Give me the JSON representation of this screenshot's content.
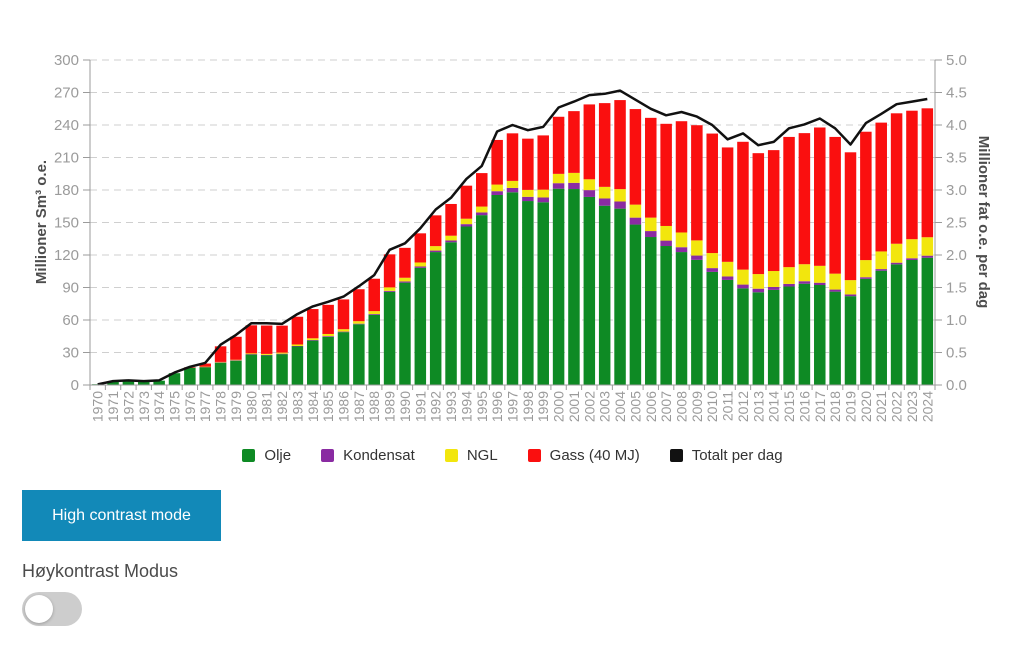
{
  "chart_data": {
    "type": "bar",
    "stacked": true,
    "categories": [
      "1970",
      "1971",
      "1972",
      "1973",
      "1974",
      "1975",
      "1976",
      "1977",
      "1978",
      "1979",
      "1980",
      "1981",
      "1982",
      "1983",
      "1984",
      "1985",
      "1986",
      "1987",
      "1988",
      "1989",
      "1990",
      "1991",
      "1992",
      "1993",
      "1994",
      "1995",
      "1996",
      "1997",
      "1998",
      "1999",
      "2000",
      "2001",
      "2002",
      "2003",
      "2004",
      "2005",
      "2006",
      "2007",
      "2008",
      "2009",
      "2010",
      "2011",
      "2012",
      "2013",
      "2014",
      "2015",
      "2016",
      "2017",
      "2018",
      "2019",
      "2020",
      "2021",
      "2022",
      "2023",
      "2024"
    ],
    "series": [
      {
        "name": "Olje",
        "color": "#0e8a24",
        "values": [
          0.7,
          3.5,
          3.8,
          3.7,
          4.0,
          10.9,
          16.2,
          16.6,
          20.6,
          22.5,
          28.2,
          27.5,
          28.5,
          35.6,
          41.0,
          44.4,
          48.8,
          56.1,
          64.8,
          86.0,
          94.5,
          108.2,
          122.7,
          131.8,
          146.3,
          156.8,
          175.4,
          177.9,
          169.8,
          168.7,
          181.2,
          180.9,
          173.6,
          165.5,
          162.8,
          148.1,
          136.6,
          128.3,
          122.7,
          115.5,
          104.4,
          97.0,
          89.2,
          85.6,
          87.8,
          90.9,
          93.5,
          92.3,
          86.2,
          82.0,
          98.0,
          105.5,
          111.4,
          115.4,
          117.5
        ]
      },
      {
        "name": "Kondensat",
        "color": "#8a2ba2",
        "values": [
          0,
          0,
          0,
          0,
          0,
          0,
          0,
          0.1,
          0.3,
          0.3,
          0.3,
          0.3,
          0.4,
          0.4,
          0.5,
          0.7,
          0.5,
          0.5,
          0.7,
          0.9,
          1.1,
          1.2,
          1.4,
          1.6,
          2.2,
          2.5,
          3.5,
          4.0,
          3.9,
          4.4,
          5.1,
          5.7,
          6.3,
          6.7,
          6.6,
          6.4,
          5.5,
          5.0,
          4.5,
          4.0,
          3.5,
          3.2,
          3.5,
          3.3,
          2.7,
          2.4,
          2.3,
          2.1,
          1.9,
          1.6,
          1.5,
          1.5,
          1.5,
          1.6,
          1.9
        ]
      },
      {
        "name": "NGL",
        "color": "#f2e60d",
        "values": [
          0,
          0,
          0,
          0,
          0,
          0,
          0,
          0.2,
          0.4,
          0.5,
          0.7,
          0.9,
          1.0,
          1.4,
          1.6,
          2.0,
          2.2,
          2.3,
          2.7,
          3.2,
          3.4,
          3.7,
          4.1,
          4.4,
          5.0,
          5.4,
          6.1,
          6.5,
          6.4,
          7.2,
          8.6,
          9.2,
          10.0,
          10.7,
          11.4,
          12.0,
          12.4,
          13.5,
          13.6,
          14.0,
          13.9,
          13.5,
          13.8,
          13.5,
          14.7,
          15.5,
          15.7,
          15.6,
          14.7,
          13.2,
          15.8,
          16.3,
          17.5,
          17.6,
          17.0
        ]
      },
      {
        "name": "Gass (40 MJ)",
        "color": "#fa0f0f",
        "values": [
          0,
          0,
          0,
          0,
          0,
          0,
          0.1,
          2.9,
          14.4,
          21.2,
          25.9,
          26.2,
          24.9,
          25.6,
          27.0,
          26.9,
          27.5,
          29.5,
          29.9,
          30.5,
          27.6,
          26.9,
          28.4,
          29.3,
          30.5,
          30.9,
          41.2,
          43.9,
          47.3,
          50.1,
          52.7,
          57.0,
          69.1,
          77.3,
          82.2,
          88.2,
          92.1,
          94.3,
          102.7,
          106.3,
          110.3,
          105.6,
          118.0,
          111.6,
          111.6,
          120.2,
          121.0,
          127.7,
          126.2,
          118.0,
          118.5,
          118.9,
          120.4,
          118.6,
          119.0
        ]
      }
    ],
    "line": {
      "name": "Totalt per dag",
      "color": "#111111",
      "values": [
        0.01,
        0.06,
        0.07,
        0.06,
        0.07,
        0.19,
        0.28,
        0.34,
        0.62,
        0.77,
        0.95,
        0.95,
        0.94,
        1.09,
        1.21,
        1.28,
        1.36,
        1.52,
        1.69,
        2.08,
        2.18,
        2.41,
        2.7,
        2.88,
        3.17,
        3.37,
        3.9,
        4.0,
        3.92,
        3.97,
        4.27,
        4.36,
        4.46,
        4.48,
        4.53,
        4.39,
        4.25,
        4.15,
        4.2,
        4.13,
        4.0,
        3.78,
        3.87,
        3.69,
        3.74,
        3.95,
        4.01,
        4.1,
        3.95,
        3.7,
        4.03,
        4.17,
        4.32,
        4.36,
        4.4
      ]
    },
    "y_left": {
      "title": "Millioner Sm³ o.e.",
      "min": 0,
      "max": 300,
      "step": 30
    },
    "y_right": {
      "title": "Millioner fat o.e. per dag",
      "min": 0,
      "max": 5,
      "step": 0.5
    },
    "grid": "dashed-horizontal",
    "legend_position": "bottom"
  },
  "controls": {
    "high_contrast_button": "High contrast mode",
    "toggle_label": "Høykontrast Modus",
    "toggle_state": "off"
  }
}
